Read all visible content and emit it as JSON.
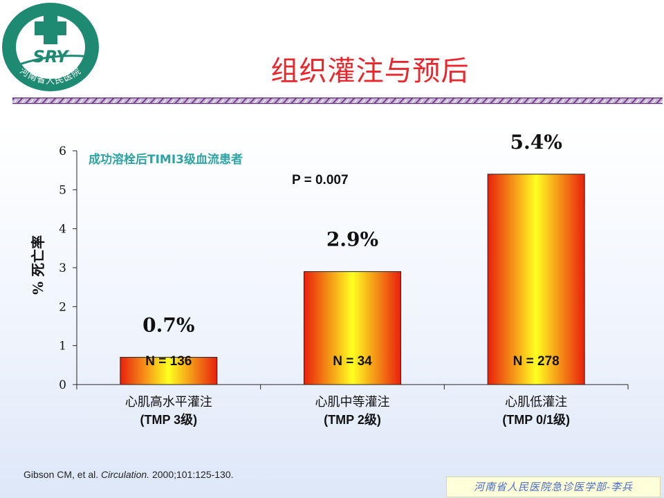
{
  "logo": {
    "brand_text": "SRY",
    "ring_text": "河南省人民医院"
  },
  "slide": {
    "title": "组织灌注与预后"
  },
  "chart_data": {
    "type": "bar",
    "subtitle": "成功溶栓后TIMI3级血流患者",
    "annotation": "P = 0.007",
    "ylabel": "% 死亡率",
    "ylim": [
      0,
      6
    ],
    "yticks": [
      "0",
      "1",
      "2",
      "3",
      "4",
      "5",
      "6"
    ],
    "categories": [
      {
        "line1": "心肌高水平灌注",
        "line2": "(TMP 3级)"
      },
      {
        "line1": "心肌中等灌注",
        "line2": "(TMP 2级)"
      },
      {
        "line1": "心肌低灌注",
        "line2": "(TMP 0/1级)"
      }
    ],
    "values": [
      0.7,
      2.9,
      5.4
    ],
    "value_labels": [
      "0.7%",
      "2.9%",
      "5.4%"
    ],
    "n_labels": [
      "N = 136",
      "N = 34",
      "N = 278"
    ],
    "colors": {
      "edge": "#e8200c",
      "center": "#ffff20",
      "title": "#e8262c",
      "subtitle": "#2ea3a3"
    }
  },
  "citation": {
    "authors": "Gibson CM, et al. ",
    "journal": "Circulation.",
    "details": " 2000;101:125-130."
  },
  "footer": {
    "text": "河南省人民医院急诊医学部-李兵"
  }
}
